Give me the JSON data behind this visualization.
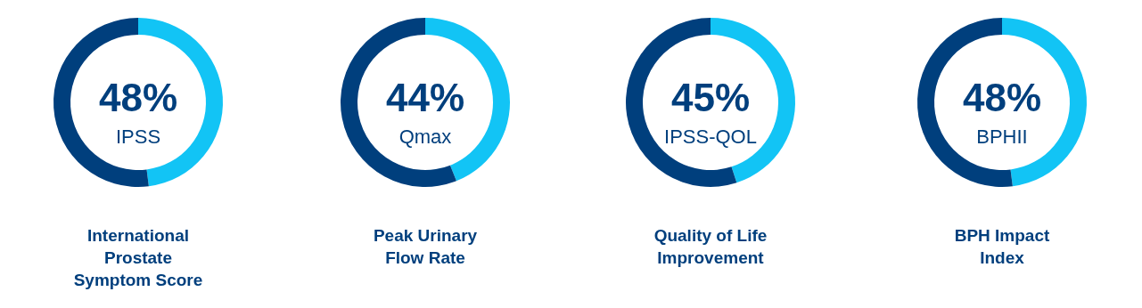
{
  "chart_data": [
    {
      "type": "donut",
      "title": "International Prostate Symptom Score",
      "categories": [
        "IPSS",
        null
      ],
      "values": [
        48,
        52
      ],
      "colors": [
        "#12c4f5",
        "#003f7d"
      ],
      "value_labels": [
        "48%",
        null
      ]
    },
    {
      "type": "donut",
      "title": "Peak Urinary Flow Rate",
      "categories": [
        "Qmax",
        null
      ],
      "values": [
        44,
        56
      ],
      "colors": [
        "#12c4f5",
        "#003f7d"
      ],
      "value_labels": [
        "44%",
        null
      ]
    },
    {
      "type": "donut",
      "title": "Quality of Life Improvement",
      "categories": [
        "IPSS-QOL",
        null
      ],
      "values": [
        45,
        55
      ],
      "colors": [
        "#12c4f5",
        "#003f7d"
      ],
      "value_labels": [
        "45%",
        null
      ]
    },
    {
      "type": "donut",
      "title": "BPH Impact Index",
      "categories": [
        "BPHII",
        null
      ],
      "values": [
        48,
        52
      ],
      "colors": [
        "#12c4f5",
        "#003f7d"
      ],
      "value_labels": [
        "48%",
        null
      ]
    }
  ]
}
